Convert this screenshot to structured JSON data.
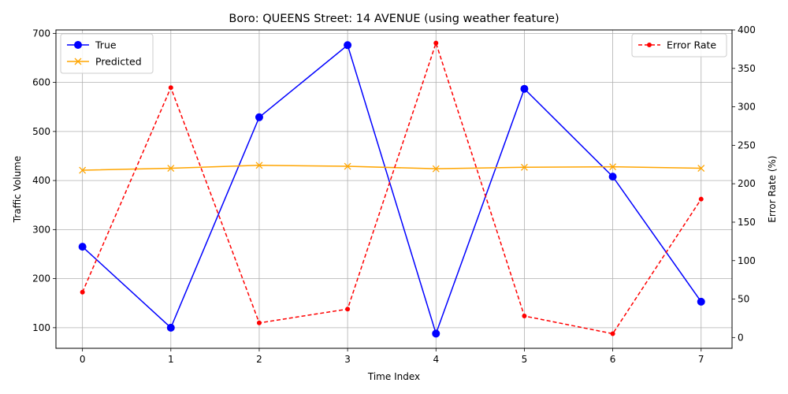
{
  "chart_data": {
    "type": "line",
    "title": "Boro: QUEENS Street: 14 AVENUE (using weather feature)",
    "xlabel": "Time Index",
    "ylabel": "Traffic Volume",
    "y2label": "Error Rate (%)",
    "x": [
      0,
      1,
      2,
      3,
      4,
      5,
      6,
      7
    ],
    "xticks": [
      "0",
      "1",
      "2",
      "3",
      "4",
      "5",
      "6",
      "7"
    ],
    "yticks": [
      "100",
      "200",
      "300",
      "400",
      "500",
      "600",
      "700"
    ],
    "y2ticks": [
      "0",
      "50",
      "100",
      "150",
      "200",
      "250",
      "300",
      "350",
      "400"
    ],
    "xlim": [
      -0.3,
      7.35
    ],
    "ylim": [
      58,
      707
    ],
    "y2lim": [
      -14,
      400
    ],
    "grid": true,
    "series": [
      {
        "name": "True",
        "axis": "left",
        "color": "#0000ff",
        "marker": "circle",
        "values": [
          265,
          100,
          529,
          676,
          88,
          587,
          408,
          153
        ]
      },
      {
        "name": "Predicted",
        "axis": "left",
        "color": "#ffa500",
        "marker": "x",
        "values": [
          421,
          425,
          431,
          429,
          424,
          427,
          428,
          425
        ]
      },
      {
        "name": "Error Rate",
        "axis": "right",
        "color": "#ff0000",
        "marker": "dot",
        "dashed": true,
        "values": [
          59,
          325,
          19,
          37,
          383,
          28,
          5,
          180
        ]
      }
    ],
    "legend_left": {
      "placement": "upper-left",
      "entries": [
        "True",
        "Predicted"
      ]
    },
    "legend_right": {
      "placement": "upper-right",
      "entries": [
        "Error Rate"
      ]
    }
  }
}
